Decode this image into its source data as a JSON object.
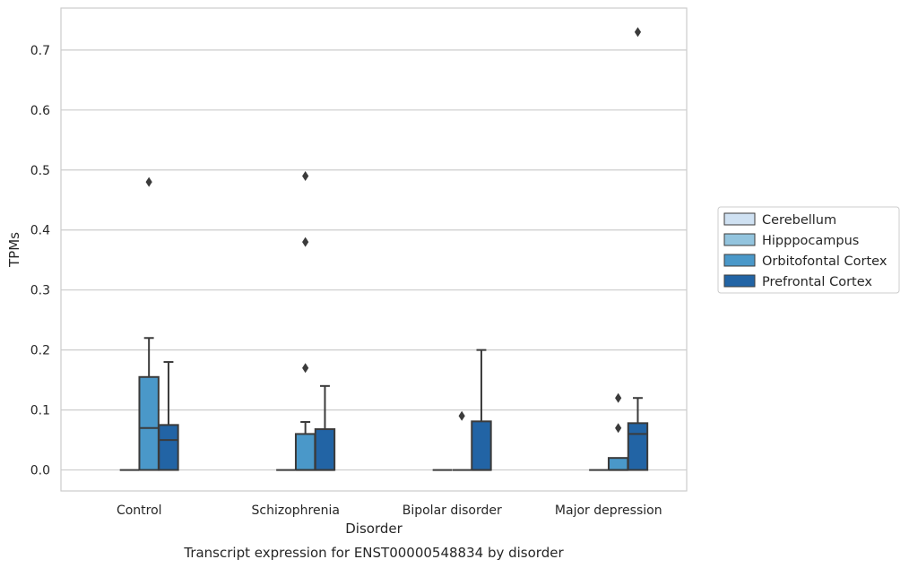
{
  "chart_data": {
    "type": "box",
    "xlabel": "Disorder",
    "ylabel": "TPMs",
    "caption": "Transcript expression for ENST00000548834 by disorder",
    "categories": [
      "Control",
      "Schizophrenia",
      "Bipolar disorder",
      "Major depression"
    ],
    "ylim": [
      -0.035,
      0.77
    ],
    "yticks": [
      "0.0",
      "0.1",
      "0.2",
      "0.3",
      "0.4",
      "0.5",
      "0.6",
      "0.7"
    ],
    "grid": "horizontal",
    "legend_position": "right",
    "series": [
      {
        "name": "Cerebellum",
        "color": "#cfe1f2",
        "boxes": [
          null,
          null,
          null,
          null
        ]
      },
      {
        "name": "Hipppocampus",
        "color": "#93c4de",
        "boxes": [
          {
            "q1": 0,
            "median": 0,
            "q3": 0,
            "whislo": 0,
            "whishi": 0,
            "fliers": []
          },
          {
            "q1": 0,
            "median": 0,
            "q3": 0,
            "whislo": 0,
            "whishi": 0,
            "fliers": []
          },
          {
            "q1": 0,
            "median": 0,
            "q3": 0,
            "whislo": 0,
            "whishi": 0,
            "fliers": []
          },
          {
            "q1": 0,
            "median": 0,
            "q3": 0,
            "whislo": 0,
            "whishi": 0,
            "fliers": []
          }
        ]
      },
      {
        "name": "Orbitofontal Cortex",
        "color": "#4a98c9",
        "boxes": [
          {
            "q1": 0,
            "median": 0.07,
            "q3": 0.155,
            "whislo": 0,
            "whishi": 0.22,
            "fliers": [
              0.48
            ]
          },
          {
            "q1": 0,
            "median": 0,
            "q3": 0.06,
            "whislo": 0,
            "whishi": 0.08,
            "fliers": [
              0.17,
              0.38,
              0.49
            ]
          },
          {
            "q1": 0,
            "median": 0,
            "q3": 0,
            "whislo": 0,
            "whishi": 0,
            "fliers": [
              0.09
            ]
          },
          {
            "q1": 0,
            "median": 0,
            "q3": 0.02,
            "whislo": 0,
            "whishi": 0.02,
            "fliers": [
              0.07,
              0.12
            ]
          }
        ]
      },
      {
        "name": "Prefrontal Cortex",
        "color": "#2264a5",
        "boxes": [
          {
            "q1": 0,
            "median": 0.05,
            "q3": 0.075,
            "whislo": 0,
            "whishi": 0.18,
            "fliers": []
          },
          {
            "q1": 0,
            "median": 0,
            "q3": 0.068,
            "whislo": 0,
            "whishi": 0.14,
            "fliers": []
          },
          {
            "q1": 0,
            "median": 0,
            "q3": 0.081,
            "whislo": 0,
            "whishi": 0.2,
            "fliers": []
          },
          {
            "q1": 0,
            "median": 0.06,
            "q3": 0.078,
            "whislo": 0,
            "whishi": 0.12,
            "fliers": [
              0.73
            ]
          }
        ]
      }
    ]
  }
}
